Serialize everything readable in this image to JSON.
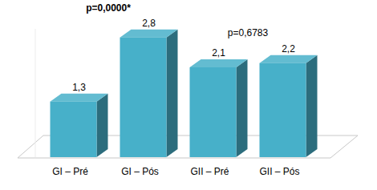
{
  "chart_data": {
    "type": "bar",
    "categories": [
      "GI – Pré",
      "GI – Pós",
      "GII – Pré",
      "GII – Pós"
    ],
    "values": [
      1.3,
      2.8,
      2.1,
      2.2
    ],
    "value_labels": [
      "1,3",
      "2,8",
      "2,1",
      "2,2"
    ],
    "color": "#47b0c9",
    "ylim": [
      0,
      3
    ],
    "data_labels": true,
    "tick_labels": false,
    "grid": false,
    "annotations": [
      {
        "text": "p=0,0000*"
      },
      {
        "text": "p=0,6783"
      }
    ]
  }
}
